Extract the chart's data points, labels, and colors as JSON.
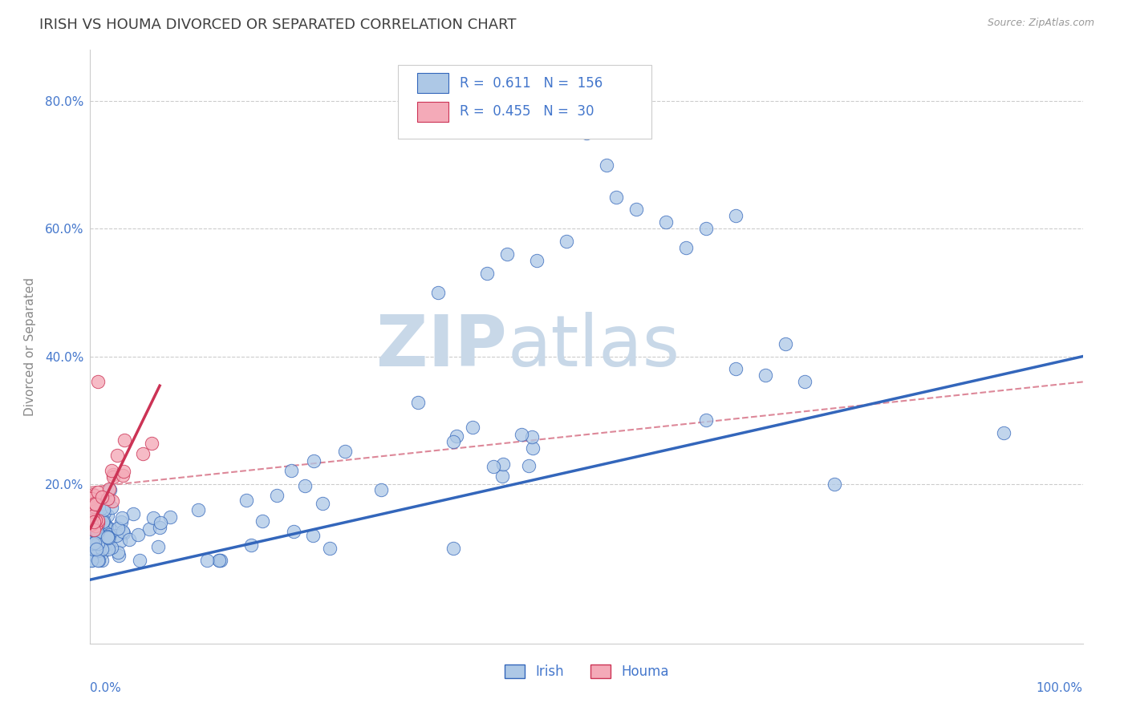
{
  "title": "IRISH VS HOUMA DIVORCED OR SEPARATED CORRELATION CHART",
  "source_text": "Source: ZipAtlas.com",
  "ylabel": "Divorced or Separated",
  "xlim": [
    0,
    1.0
  ],
  "ylim": [
    -0.05,
    0.88
  ],
  "irish_R": 0.611,
  "irish_N": 156,
  "houma_R": 0.455,
  "houma_N": 30,
  "irish_color": "#adc8e6",
  "houma_color": "#f4aab8",
  "irish_line_color": "#3366bb",
  "houma_line_color": "#cc3355",
  "dashed_color": "#dd8899",
  "watermark_zip": "ZIP",
  "watermark_atlas": "atlas",
  "watermark_color_zip": "#c8d8e8",
  "watermark_color_atlas": "#c8d8e8",
  "grid_color": "#cccccc",
  "background_color": "#ffffff",
  "title_color": "#404040",
  "title_fontsize": 13,
  "axis_label_color": "#4477cc",
  "irish_line_intercept": 0.05,
  "irish_line_slope": 0.35,
  "houma_line_intercept": 0.13,
  "houma_line_slope": 3.2,
  "dashed_line_intercept": 0.195,
  "dashed_line_slope": 0.165
}
